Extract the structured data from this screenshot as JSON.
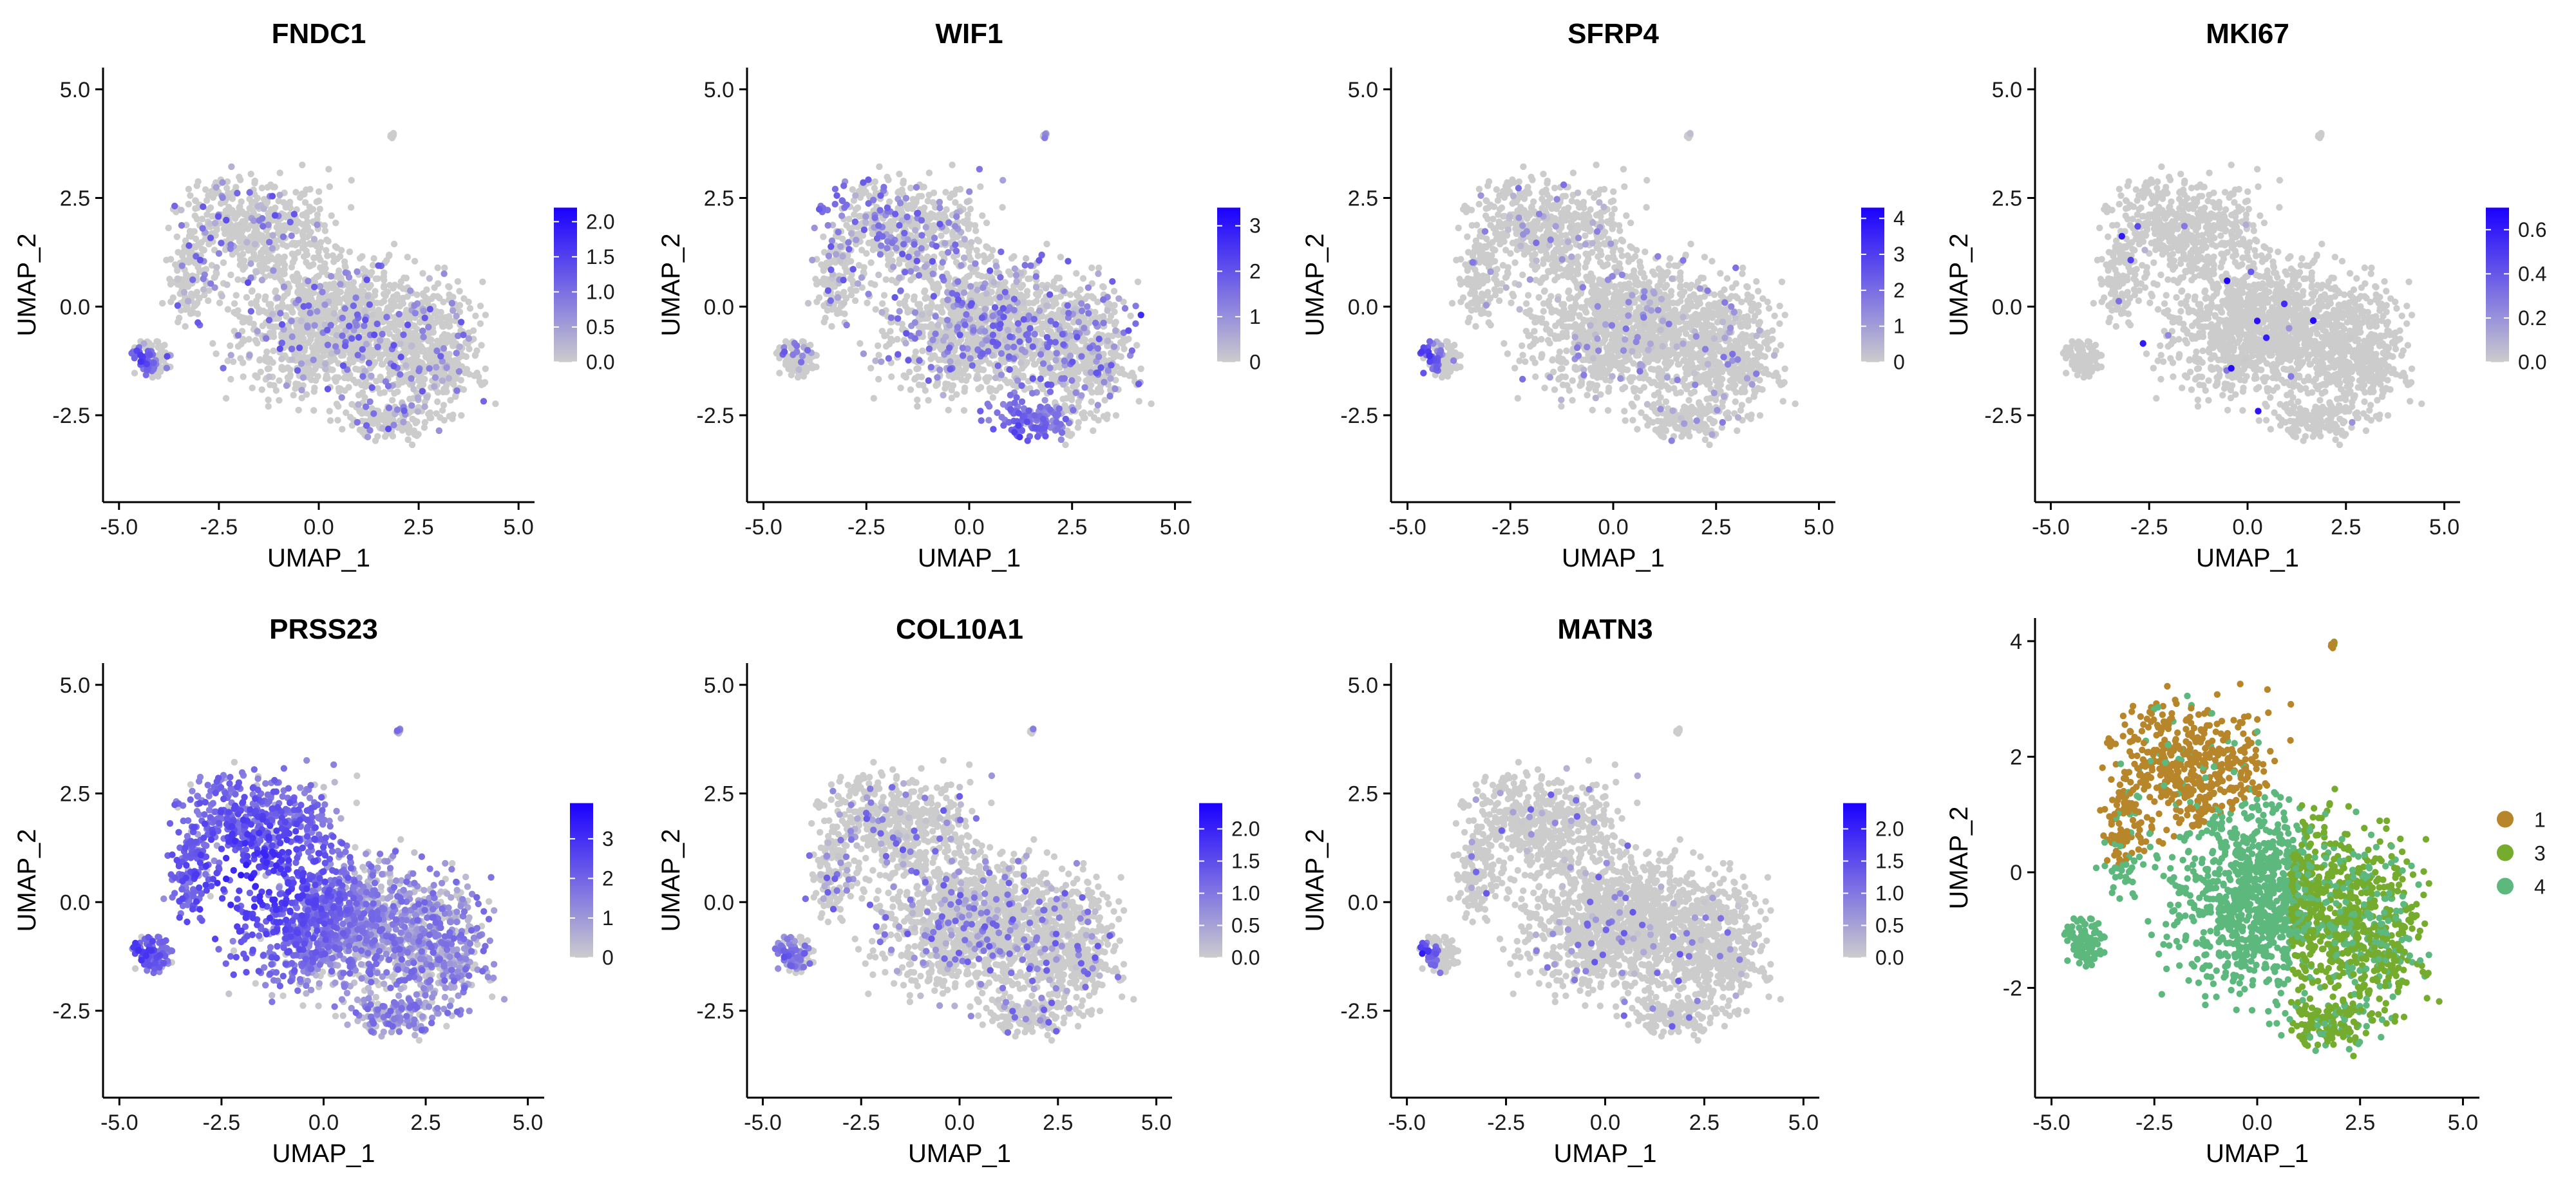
{
  "chart_data": [
    {
      "type": "scatter",
      "title": "FNDC1",
      "xlabel": "UMAP_1",
      "ylabel": "UMAP_2",
      "xlim": [
        -5.4,
        5.4
      ],
      "ylim": [
        -4.5,
        5.5
      ],
      "xticks": [
        "-5.0",
        "-2.5",
        "0.0",
        "2.5",
        "5.0"
      ],
      "yticks": [
        "5.0",
        "2.5",
        "0.0",
        "-2.5"
      ],
      "color_scale": {
        "low": "#cccccc",
        "high": "#1a00ff",
        "max": 2.2,
        "ticks": [
          "2.0",
          "1.5",
          "1.0",
          "0.5",
          "0.0"
        ]
      },
      "hotspots": [
        {
          "x": -4.6,
          "y": -1.3,
          "r": 0.5,
          "value": 2.0
        }
      ],
      "sparse_level": 0.12,
      "sparse_max": 1.4
    },
    {
      "type": "scatter",
      "title": "WIF1",
      "xlabel": "UMAP_1",
      "ylabel": "UMAP_2",
      "xlim": [
        -5.4,
        5.4
      ],
      "ylim": [
        -4.5,
        5.5
      ],
      "xticks": [
        "-5.0",
        "-2.5",
        "0.0",
        "2.5",
        "5.0"
      ],
      "yticks": [
        "5.0",
        "2.5",
        "0.0",
        "-2.5"
      ],
      "color_scale": {
        "low": "#cccccc",
        "high": "#1a00ff",
        "max": 3.4,
        "ticks": [
          "3",
          "2",
          "1",
          "0"
        ]
      },
      "hotspots": [
        {
          "x": 4.3,
          "y": -0.3,
          "r": 0.6,
          "value": 3.2
        },
        {
          "x": 1.2,
          "y": -3.0,
          "r": 1.1,
          "value": 2.6
        },
        {
          "x": -3.7,
          "y": 2.6,
          "r": 0.8,
          "value": 2.6
        }
      ],
      "sparse_level": 0.2,
      "sparse_max": 2.0
    },
    {
      "type": "scatter",
      "title": "SFRP4",
      "xlabel": "UMAP_1",
      "ylabel": "UMAP_2",
      "xlim": [
        -5.4,
        5.4
      ],
      "ylim": [
        -4.5,
        5.5
      ],
      "xticks": [
        "-5.0",
        "-2.5",
        "0.0",
        "2.5",
        "5.0"
      ],
      "yticks": [
        "5.0",
        "2.5",
        "0.0",
        "-2.5"
      ],
      "color_scale": {
        "low": "#cccccc",
        "high": "#1a00ff",
        "max": 4.3,
        "ticks": [
          "4",
          "3",
          "2",
          "1",
          "0"
        ]
      },
      "hotspots": [
        {
          "x": -4.6,
          "y": -1.2,
          "r": 0.45,
          "value": 3.8
        }
      ],
      "sparse_level": 0.06,
      "sparse_max": 2.0
    },
    {
      "type": "scatter",
      "title": "MKI67",
      "xlabel": "UMAP_1",
      "ylabel": "UMAP_2",
      "xlim": [
        -5.4,
        5.4
      ],
      "ylim": [
        -4.5,
        5.5
      ],
      "xticks": [
        "-5.0",
        "-2.5",
        "0.0",
        "2.5",
        "5.0"
      ],
      "yticks": [
        "5.0",
        "2.5",
        "0.0",
        "-2.5"
      ],
      "color_scale": {
        "low": "#cccccc",
        "high": "#1a00ff",
        "max": 0.7,
        "ticks": [
          "0.6",
          "0.4",
          "0.2",
          "0.0"
        ]
      },
      "hotspots": [],
      "sparse_level": 0.008,
      "sparse_max": 0.7
    },
    {
      "type": "scatter",
      "title": "PRSS23",
      "xlabel": "UMAP_1",
      "ylabel": "UMAP_2",
      "xlim": [
        -5.4,
        5.4
      ],
      "ylim": [
        -4.5,
        5.5
      ],
      "xticks": [
        "-5.0",
        "-2.5",
        "0.0",
        "2.5",
        "5.0"
      ],
      "yticks": [
        "5.0",
        "2.5",
        "0.0",
        "-2.5"
      ],
      "color_scale": {
        "low": "#cccccc",
        "high": "#1a00ff",
        "max": 3.9,
        "ticks": [
          "3",
          "2",
          "1",
          "0"
        ]
      },
      "hotspots": [
        {
          "x": -1.8,
          "y": 0.5,
          "r": 2.6,
          "value": 3.6
        },
        {
          "x": -4.5,
          "y": -1.2,
          "r": 0.8,
          "value": 3.4
        }
      ],
      "sparse_level": 0.85,
      "sparse_max": 2.0
    },
    {
      "type": "scatter",
      "title": "COL10A1",
      "xlabel": "UMAP_1",
      "ylabel": "UMAP_2",
      "xlim": [
        -5.4,
        5.4
      ],
      "ylim": [
        -4.5,
        5.5
      ],
      "xticks": [
        "-5.0",
        "-2.5",
        "0.0",
        "2.5",
        "5.0"
      ],
      "yticks": [
        "5.0",
        "2.5",
        "0.0",
        "-2.5"
      ],
      "color_scale": {
        "low": "#cccccc",
        "high": "#1a00ff",
        "max": 2.4,
        "ticks": [
          "2.0",
          "1.5",
          "1.0",
          "0.5",
          "0.0"
        ]
      },
      "hotspots": [
        {
          "x": -4.5,
          "y": -1.3,
          "r": 0.55,
          "value": 1.6
        }
      ],
      "sparse_level": 0.14,
      "sparse_max": 1.4
    },
    {
      "type": "scatter",
      "title": "MATN3",
      "xlabel": "UMAP_1",
      "ylabel": "UMAP_2",
      "xlim": [
        -5.4,
        5.4
      ],
      "ylim": [
        -4.5,
        5.5
      ],
      "xticks": [
        "-5.0",
        "-2.5",
        "0.0",
        "2.5",
        "5.0"
      ],
      "yticks": [
        "5.0",
        "2.5",
        "0.0",
        "-2.5"
      ],
      "color_scale": {
        "low": "#cccccc",
        "high": "#1a00ff",
        "max": 2.4,
        "ticks": [
          "2.0",
          "1.5",
          "1.0",
          "0.5",
          "0.0"
        ]
      },
      "hotspots": [
        {
          "x": -4.6,
          "y": -1.2,
          "r": 0.4,
          "value": 2.2
        }
      ],
      "sparse_level": 0.04,
      "sparse_max": 1.4
    },
    {
      "type": "scatter",
      "title": "",
      "xlabel": "UMAP_1",
      "ylabel": "UMAP_2",
      "xlim": [
        -5.4,
        5.4
      ],
      "ylim": [
        -3.9,
        4.4
      ],
      "xticks": [
        "-5.0",
        "-2.5",
        "0.0",
        "2.5",
        "5.0"
      ],
      "yticks": [
        "4",
        "2",
        "0",
        "-2"
      ],
      "series": [
        {
          "name": "1",
          "color": "#b8862a",
          "region": "upper"
        },
        {
          "name": "3",
          "color": "#76ac2e",
          "region": "right"
        },
        {
          "name": "4",
          "color": "#5cb87c",
          "region": "rest"
        }
      ]
    }
  ]
}
